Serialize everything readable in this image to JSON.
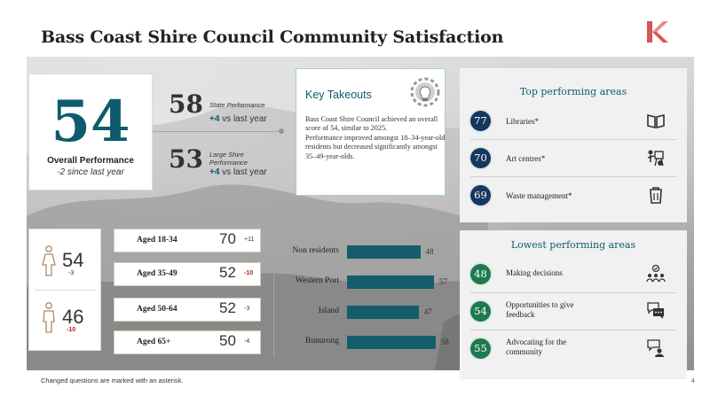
{
  "title": "Bass Coast Shire Council Community Satisfaction",
  "overall": {
    "score": "54",
    "label": "Overall Performance",
    "change": "-2 since last year"
  },
  "state": {
    "score": "58",
    "label": "State Performance",
    "delta": "+4",
    "delta_suffix": " vs last year"
  },
  "large_shire": {
    "score": "53",
    "label_line1": "Large Shire",
    "label_line2": "Performance",
    "delta": "+4",
    "delta_suffix": " vs last year"
  },
  "key_takeouts": {
    "heading": "Key Takeouts",
    "para1": "Bass Coast Shire Council achieved an overall score of 54, similar to 2025.",
    "para2": "Performance improved amongst 18–34-year-old residents but decreased significantly amongst 35–49-year-olds."
  },
  "top_areas": {
    "heading": "Top performing areas",
    "items": [
      {
        "score": "77",
        "label": "Libraries*",
        "icon": "book-icon"
      },
      {
        "score": "70",
        "label": "Art centres*",
        "icon": "easel-icon"
      },
      {
        "score": "69",
        "label": "Waste management*",
        "icon": "bin-icon"
      }
    ]
  },
  "lowest_areas": {
    "heading": "Lowest performing areas",
    "items": [
      {
        "score": "48",
        "label_line1": "Making decisions",
        "label_line2": "",
        "icon": "group-decision-icon"
      },
      {
        "score": "54",
        "label_line1": "Opportunities to give",
        "label_line2": "feedback",
        "icon": "chat-icon"
      },
      {
        "score": "55",
        "label_line1": "Advocating for the",
        "label_line2": "community",
        "icon": "advocate-icon"
      }
    ]
  },
  "gender": [
    {
      "score": "54",
      "delta": "-3",
      "delta_color": "#333333"
    },
    {
      "score": "46",
      "delta": "-10",
      "delta_color": "#c0161c"
    }
  ],
  "ages": [
    {
      "label": "Aged 18-34",
      "score": "70",
      "delta": "+11",
      "delta_color": "#333333"
    },
    {
      "label": "Aged 35-49",
      "score": "52",
      "delta": "-10",
      "delta_color": "#c0161c"
    },
    {
      "label": "Aged 50-64",
      "score": "52",
      "delta": "-3",
      "delta_color": "#333333"
    },
    {
      "label": "Aged 65+",
      "score": "50",
      "delta": "-4",
      "delta_color": "#333333"
    }
  ],
  "chart_data": {
    "type": "bar",
    "orientation": "horizontal",
    "categories": [
      "Non residents",
      "Western Port",
      "Island",
      "Bunurong"
    ],
    "values": [
      48,
      57,
      47,
      58
    ],
    "color": "#155d6a"
  },
  "footnote": "Changed questions are marked with an asterisk.",
  "page_number": "4",
  "colors": {
    "teal": "#0e5b6b",
    "navy": "#16375e",
    "green": "#1c7a4c",
    "red": "#c0161c",
    "logo_red": "#d9534f"
  }
}
